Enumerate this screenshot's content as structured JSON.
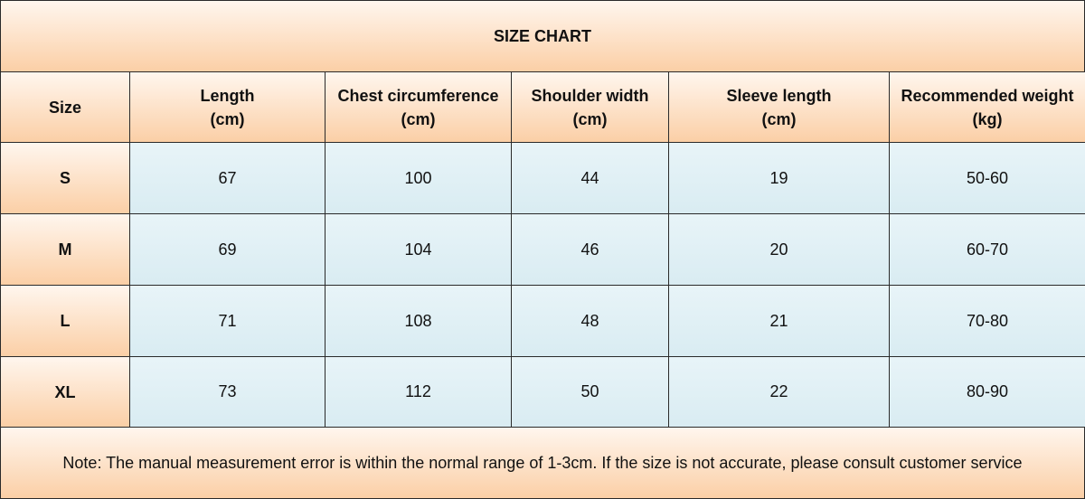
{
  "title": "SIZE CHART",
  "table": {
    "header": [
      {
        "name": "Size"
      },
      {
        "name": "Length",
        "unit": "(cm)"
      },
      {
        "name": "Chest circumference",
        "unit": "(cm)"
      },
      {
        "name": "Shoulder width",
        "unit": "(cm)"
      },
      {
        "name": "Sleeve length",
        "unit": "(cm)"
      },
      {
        "name": "Recommended weight",
        "unit": "(kg)"
      }
    ],
    "rows": [
      [
        "S",
        "67",
        "100",
        "44",
        "19",
        "50-60"
      ],
      [
        "M",
        "69",
        "104",
        "46",
        "20",
        "60-70"
      ],
      [
        "L",
        "71",
        "108",
        "48",
        "21",
        "70-80"
      ],
      [
        "XL",
        "73",
        "112",
        "50",
        "22",
        "80-90"
      ]
    ]
  },
  "note": "Note: The manual measurement error is within the normal range of 1-3cm. If the size is not accurate, please consult customer service"
}
